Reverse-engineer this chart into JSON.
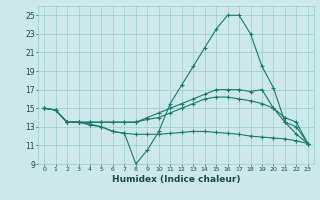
{
  "xlabel": "Humidex (Indice chaleur)",
  "bg_color": "#cce8e8",
  "grid_color": "#99cccc",
  "line_color": "#1a7a6e",
  "xlim": [
    -0.5,
    23.5
  ],
  "ylim": [
    9,
    26
  ],
  "xticks": [
    0,
    1,
    2,
    3,
    4,
    5,
    6,
    7,
    8,
    9,
    10,
    11,
    12,
    13,
    14,
    15,
    16,
    17,
    18,
    19,
    20,
    21,
    22,
    23
  ],
  "yticks": [
    9,
    11,
    13,
    15,
    17,
    19,
    21,
    23,
    25
  ],
  "series": [
    [
      15,
      14.8,
      13.5,
      13.5,
      13.2,
      13.0,
      12.5,
      12.3,
      9.0,
      10.5,
      12.5,
      15.5,
      17.5,
      19.5,
      21.5,
      23.5,
      25.0,
      25.0,
      23.0,
      19.5,
      17.2,
      13.5,
      12.2,
      11.2
    ],
    [
      15,
      14.8,
      13.5,
      13.5,
      13.5,
      13.5,
      13.5,
      13.5,
      13.5,
      14.0,
      14.5,
      15.0,
      15.5,
      16.0,
      16.5,
      17.0,
      17.0,
      17.0,
      16.8,
      17.0,
      15.0,
      14.0,
      13.5,
      11.2
    ],
    [
      15,
      14.8,
      13.5,
      13.5,
      13.5,
      13.5,
      13.5,
      13.5,
      13.5,
      13.8,
      14.0,
      14.5,
      15.0,
      15.5,
      16.0,
      16.2,
      16.2,
      16.0,
      15.8,
      15.5,
      15.0,
      13.5,
      13.0,
      11.2
    ],
    [
      15,
      14.8,
      13.5,
      13.5,
      13.3,
      13.0,
      12.5,
      12.3,
      12.2,
      12.2,
      12.2,
      12.3,
      12.4,
      12.5,
      12.5,
      12.4,
      12.3,
      12.2,
      12.0,
      11.9,
      11.8,
      11.7,
      11.5,
      11.2
    ]
  ]
}
